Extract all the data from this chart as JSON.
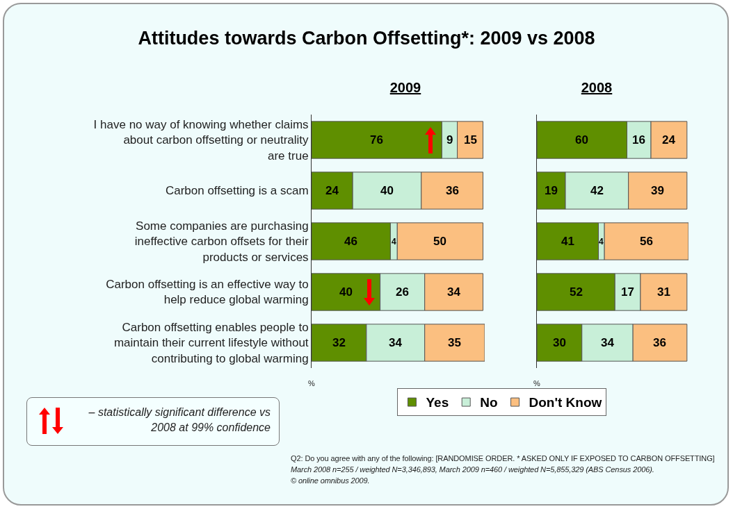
{
  "chart_data": [
    {
      "type": "bar",
      "title": "Attitudes towards Carbon Offsetting*: 2009 vs 2008",
      "subtitle": "2009",
      "xlabel": "%",
      "orientation": "horizontal",
      "stacked": true,
      "data_labels": true,
      "legend": false,
      "tick_labels": "y",
      "xlim": [
        0,
        101
      ],
      "categories": [
        "I have no way of knowing whether claims about carbon offsetting or neutrality are true",
        "Carbon offsetting is a scam",
        "Some companies are purchasing ineffective carbon offsets for their products or services",
        "Carbon offsetting is an effective way to help reduce global warming",
        "Carbon offsetting enables people to maintain their current lifestyle without contributing to global warming"
      ],
      "series": [
        {
          "color": "#5f8f00",
          "values": [
            76,
            24,
            46,
            40,
            32
          ]
        },
        {
          "color": "#c8efd8",
          "values": [
            9,
            40,
            4,
            26,
            34
          ]
        },
        {
          "color": "#fbbf80",
          "values": [
            15,
            36,
            50,
            34,
            35
          ]
        }
      ],
      "annotations": [
        "– statistically significant difference vs 2008 at 99% confidence"
      ]
    },
    {
      "type": "bar",
      "subtitle": "2008",
      "xlabel": "%",
      "orientation": "horizontal",
      "stacked": true,
      "data_labels": true,
      "legend": "bottom",
      "tick_labels": false,
      "xlim": [
        0,
        101
      ],
      "categories": [
        "I have no way of knowing whether claims about carbon offsetting or neutrality are true",
        "Carbon offsetting is a scam",
        "Some companies are purchasing ineffective carbon offsets for their products or services",
        "Carbon offsetting is an effective way to help reduce global warming",
        "Carbon offsetting enables people to maintain their current lifestyle without contributing to global warming"
      ],
      "series": [
        {
          "name": "Yes",
          "color": "#5f8f00",
          "values": [
            60,
            19,
            41,
            52,
            30
          ]
        },
        {
          "name": "No",
          "color": "#c8efd8",
          "values": [
            16,
            42,
            4,
            17,
            34
          ]
        },
        {
          "name": "Don't Know",
          "color": "#fbbf80",
          "values": [
            24,
            39,
            56,
            31,
            36
          ]
        }
      ],
      "annotations": [
        "Q2: Do you agree with any of the following: [RANDOMISE ORDER. * ASKED ONLY IF EXPOSED TO CARBON OFFSETTING]",
        "March 2008 n=255 / weighted N=3,346,893, March 2009 n=460 / weighted N=5,855,329 (ABS Census 2006).",
        "© online omnibus 2009."
      ]
    }
  ]
}
